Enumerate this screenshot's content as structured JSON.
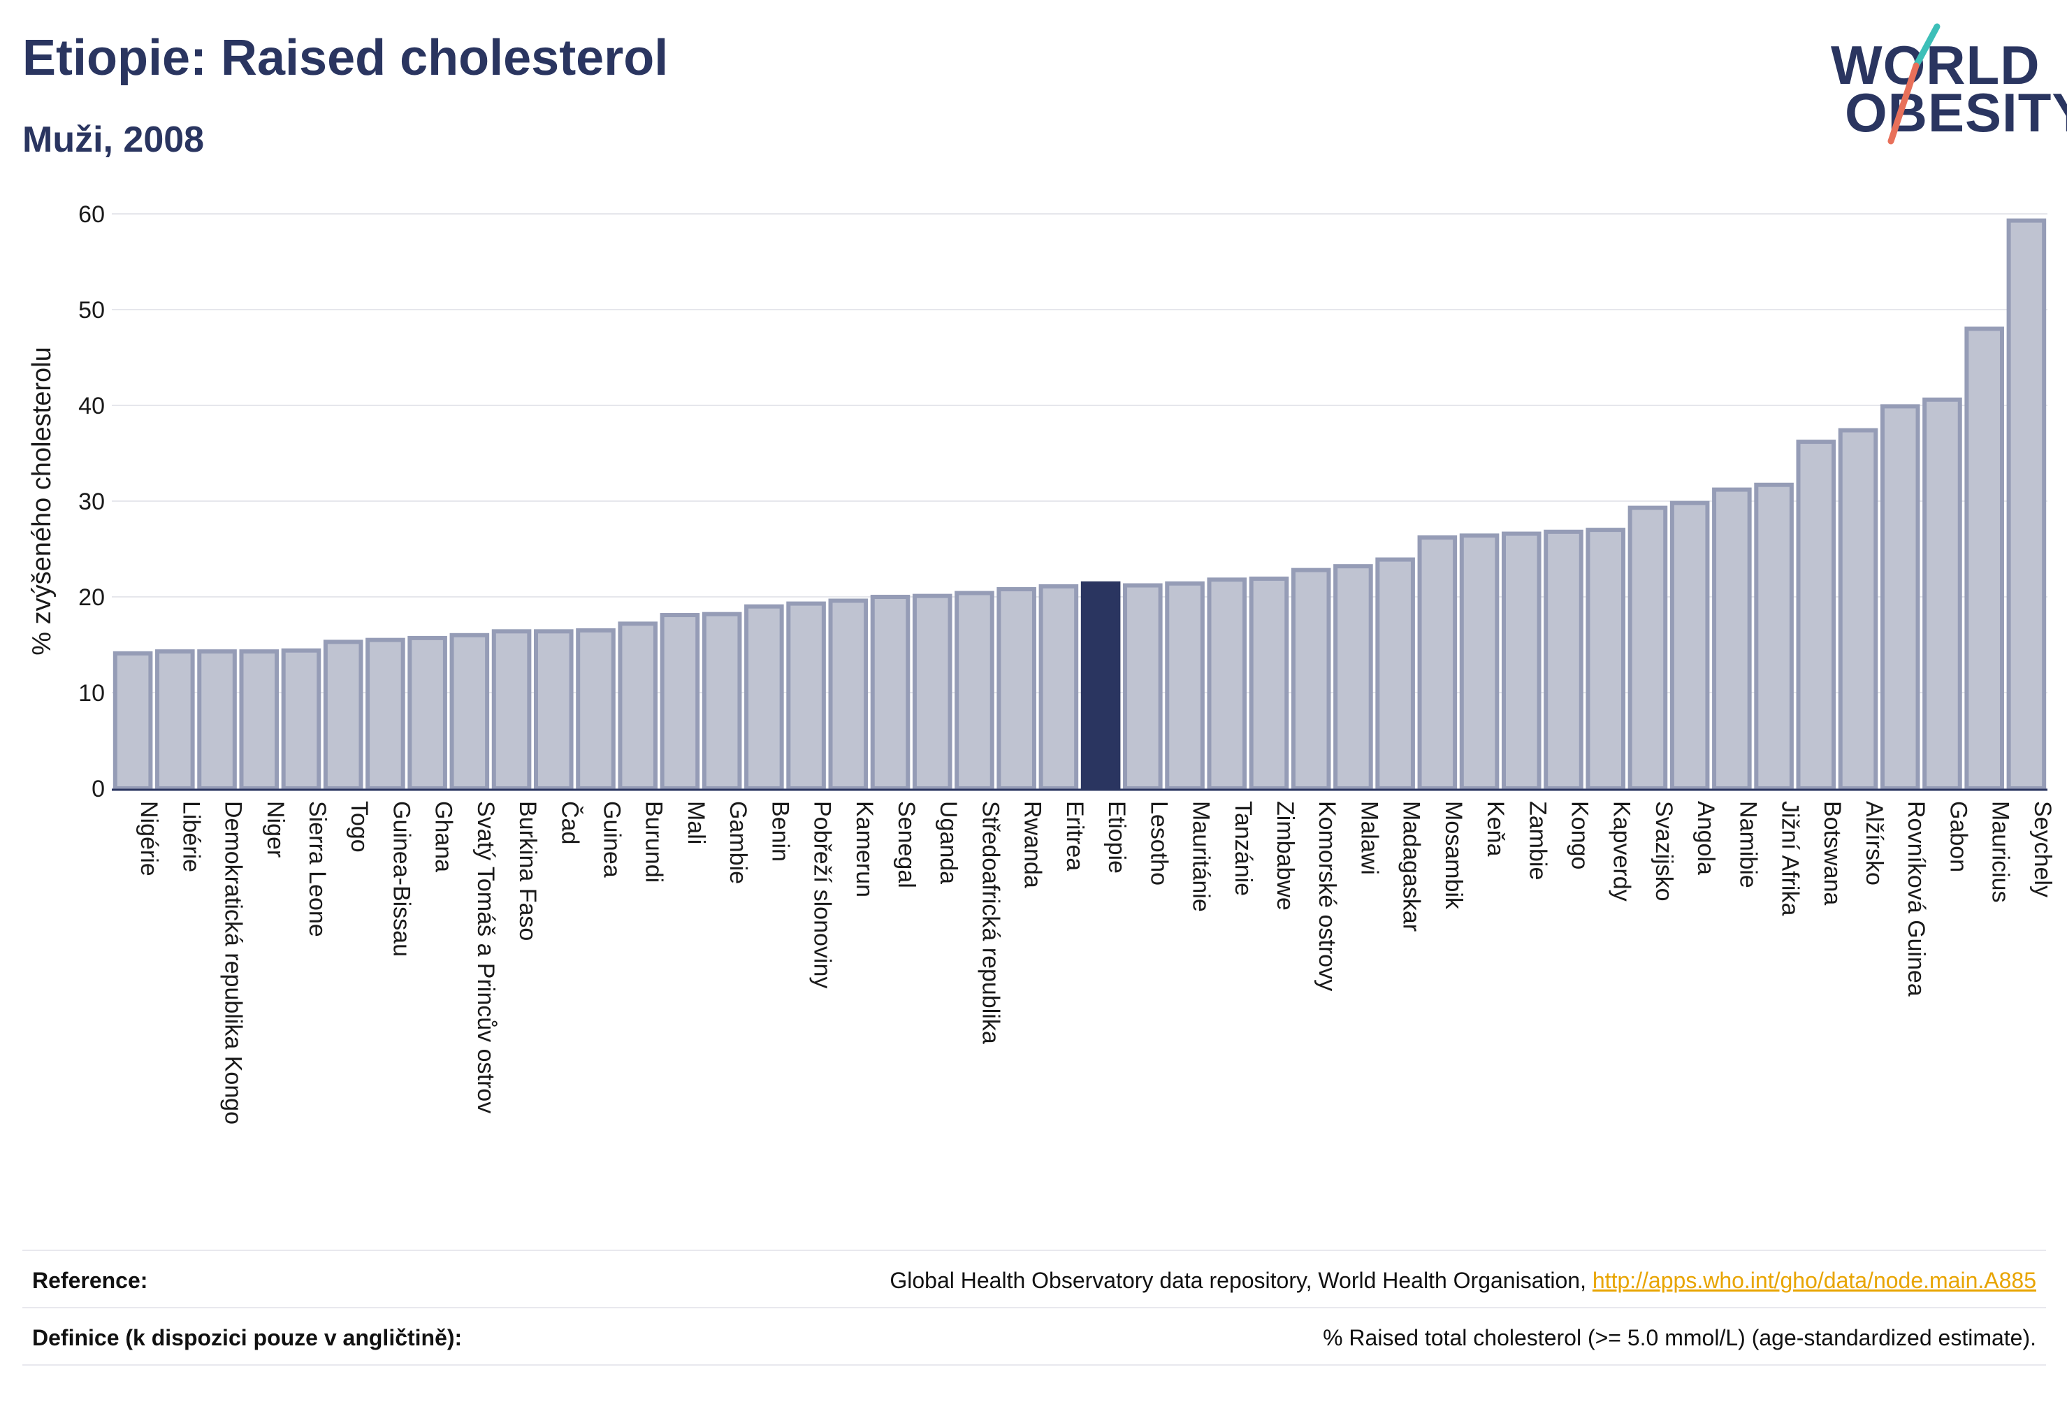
{
  "title": "Etiopie: Raised cholesterol",
  "subtitle": "Muži, 2008",
  "logo": {
    "line1": "WORLD",
    "line2": "OBESITY"
  },
  "colors": {
    "bar": "#bfc3d1",
    "bar_border": "#959cb6",
    "highlight": "#2a3560",
    "grid": "#e6e7ec",
    "logo_teal": "#3dbfb8",
    "logo_coral": "#e8705a",
    "link": "#e8a400"
  },
  "chart_data": {
    "type": "bar",
    "ylabel": "% zvýšeného cholesterolu",
    "ylim": [
      0,
      60
    ],
    "yticks": [
      0,
      10,
      20,
      30,
      40,
      50,
      60
    ],
    "grid": true,
    "highlight": "Etiopie",
    "categories": [
      "Nigérie",
      "Libérie",
      "Demokratická republika Kongo",
      "Niger",
      "Sierra Leone",
      "Togo",
      "Guinea-Bissau",
      "Ghana",
      "Svatý Tomáš a Princův ostrov",
      "Burkina Faso",
      "Čad",
      "Guinea",
      "Burundi",
      "Mali",
      "Gambie",
      "Benin",
      "Pobřeží slonoviny",
      "Kamerun",
      "Senegal",
      "Uganda",
      "Středoafrická republika",
      "Rwanda",
      "Eritrea",
      "Etiopie",
      "Lesotho",
      "Mauritánie",
      "Tanzánie",
      "Zimbabwe",
      "Komorské ostrovy",
      "Malawi",
      "Madagaskar",
      "Mosambik",
      "Keňa",
      "Zambie",
      "Kongo",
      "Kapverdy",
      "Svazijsko",
      "Angola",
      "Namibie",
      "Jižní Afrika",
      "Botswana",
      "Alžírsko",
      "Rovníková Guinea",
      "Gabon",
      "Mauricius",
      "Seychely"
    ],
    "values": [
      14.1,
      14.3,
      14.3,
      14.3,
      14.4,
      15.3,
      15.5,
      15.7,
      16.0,
      16.4,
      16.4,
      16.5,
      17.2,
      18.1,
      18.2,
      19.0,
      19.3,
      19.6,
      20.0,
      20.1,
      20.4,
      20.8,
      21.1,
      21.4,
      21.2,
      21.4,
      21.8,
      21.9,
      22.8,
      23.2,
      23.9,
      26.2,
      26.4,
      26.6,
      26.8,
      27.0,
      29.3,
      29.8,
      31.2,
      31.7,
      36.2,
      37.4,
      39.9,
      40.6,
      48.0,
      59.3
    ]
  },
  "footer": {
    "reference_label": "Reference:",
    "reference_text": "Global Health Observatory data repository, World Health Organisation, ",
    "reference_link": "http://apps.who.int/gho/data/node.main.A885",
    "definition_label": "Definice (k dispozici pouze v angličtině):",
    "definition_text": "% Raised total cholesterol (>= 5.0 mmol/L) (age-standardized estimate)."
  }
}
